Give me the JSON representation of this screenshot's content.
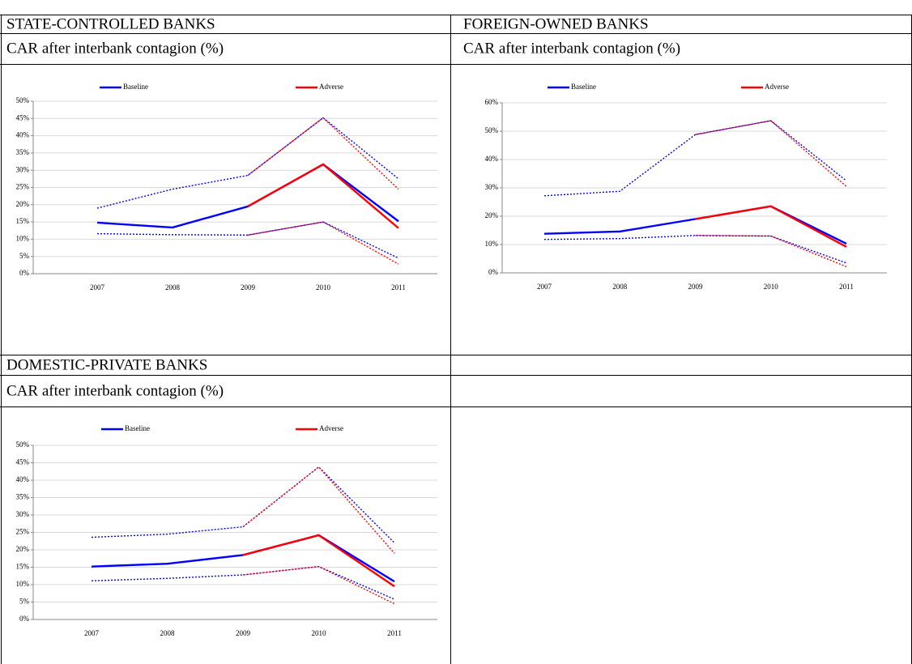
{
  "chart_data": [
    {
      "type": "line",
      "title": "STATE-CONTROLLED BANKS",
      "subtitle": "CAR after interbank contagion (%)",
      "categories": [
        "2007",
        "2008",
        "2009",
        "2010",
        "2011"
      ],
      "ylim": [
        0,
        50
      ],
      "yticks": [
        {
          "value": 0,
          "label": "0%"
        },
        {
          "value": 5,
          "label": "5%"
        },
        {
          "value": 10,
          "label": "10%"
        },
        {
          "value": 15,
          "label": "15%"
        },
        {
          "value": 20,
          "label": "20%"
        },
        {
          "value": 25,
          "label": "25%"
        },
        {
          "value": 30,
          "label": "30%"
        },
        {
          "value": 35,
          "label": "35%"
        },
        {
          "value": 40,
          "label": "40%"
        },
        {
          "value": 45,
          "label": "45%"
        },
        {
          "value": 50,
          "label": "50%"
        }
      ],
      "grid": true,
      "legend": "top",
      "series": [
        {
          "color": "#0000ff",
          "dash": true,
          "values": [
            19,
            24.5,
            28.5,
            45.2,
            27.5
          ]
        },
        {
          "color": "#ff0000",
          "dash": true,
          "values": [
            null,
            null,
            28.5,
            45.2,
            24.5
          ]
        },
        {
          "color": "#0000ff",
          "dash": true,
          "values": [
            11.6,
            11.3,
            11.2,
            15,
            4.5
          ]
        },
        {
          "color": "#ff0000",
          "dash": true,
          "values": [
            null,
            null,
            11.2,
            15,
            2.8
          ]
        },
        {
          "name": "Baseline",
          "color": "#0000ff",
          "values": [
            14.8,
            13.4,
            19.5,
            31.7,
            15.2
          ]
        },
        {
          "name": "Adverse",
          "color": "#ff0000",
          "values": [
            null,
            null,
            19.5,
            31.7,
            13.2
          ]
        }
      ]
    },
    {
      "type": "line",
      "title": "FOREIGN-OWNED BANKS",
      "subtitle": "CAR after interbank contagion (%)",
      "categories": [
        "2007",
        "2008",
        "2009",
        "2010",
        "2011"
      ],
      "ylim": [
        0,
        60
      ],
      "yticks": [
        {
          "value": 0,
          "label": "0%"
        },
        {
          "value": 10,
          "label": "10%"
        },
        {
          "value": 20,
          "label": "20%"
        },
        {
          "value": 30,
          "label": "30%"
        },
        {
          "value": 40,
          "label": "40%"
        },
        {
          "value": 50,
          "label": "50%"
        },
        {
          "value": 60,
          "label": "60%"
        }
      ],
      "grid": true,
      "legend": "top",
      "series": [
        {
          "color": "#0000ff",
          "dash": true,
          "values": [
            27.2,
            28.8,
            48.8,
            53.7,
            32.5
          ]
        },
        {
          "color": "#ff0000",
          "dash": true,
          "values": [
            null,
            null,
            48.8,
            53.7,
            30.5
          ]
        },
        {
          "color": "#0000ff",
          "dash": true,
          "values": [
            11.8,
            12.1,
            13.2,
            13,
            3.5
          ]
        },
        {
          "color": "#ff0000",
          "dash": true,
          "values": [
            null,
            null,
            13.2,
            13,
            2.2
          ]
        },
        {
          "name": "Baseline",
          "color": "#0000ff",
          "values": [
            13.8,
            14.6,
            19,
            23.5,
            10.3
          ]
        },
        {
          "name": "Adverse",
          "color": "#ff0000",
          "values": [
            null,
            null,
            19,
            23.5,
            9.2
          ]
        }
      ]
    },
    {
      "type": "line",
      "title": "DOMESTIC-PRIVATE BANKS",
      "subtitle": "CAR after interbank contagion (%)",
      "categories": [
        "2007",
        "2008",
        "2009",
        "2010",
        "2011"
      ],
      "ylim": [
        0,
        50
      ],
      "yticks": [
        {
          "value": 0,
          "label": "0%"
        },
        {
          "value": 5,
          "label": "5%"
        },
        {
          "value": 10,
          "label": "10%"
        },
        {
          "value": 15,
          "label": "15%"
        },
        {
          "value": 20,
          "label": "20%"
        },
        {
          "value": 25,
          "label": "25%"
        },
        {
          "value": 30,
          "label": "30%"
        },
        {
          "value": 35,
          "label": "35%"
        },
        {
          "value": 40,
          "label": "40%"
        },
        {
          "value": 45,
          "label": "45%"
        },
        {
          "value": 50,
          "label": "50%"
        }
      ],
      "grid": true,
      "legend": "top",
      "series": [
        {
          "color": "#0000ff",
          "dash": true,
          "values": [
            23.6,
            24.5,
            26.6,
            43.8,
            22
          ]
        },
        {
          "color": "#ff0000",
          "dash": true,
          "values": [
            null,
            null,
            26.6,
            43.8,
            19
          ]
        },
        {
          "color": "#0000ff",
          "dash": true,
          "values": [
            11.1,
            11.8,
            12.8,
            15.2,
            5.8
          ]
        },
        {
          "color": "#ff0000",
          "dash": true,
          "values": [
            null,
            null,
            12.8,
            15.2,
            4.5
          ]
        },
        {
          "name": "Baseline",
          "color": "#0000ff",
          "values": [
            15.2,
            16,
            18.5,
            24.2,
            10.9
          ]
        },
        {
          "name": "Adverse",
          "color": "#ff0000",
          "values": [
            null,
            null,
            18.5,
            24.2,
            9.5
          ]
        }
      ]
    }
  ]
}
